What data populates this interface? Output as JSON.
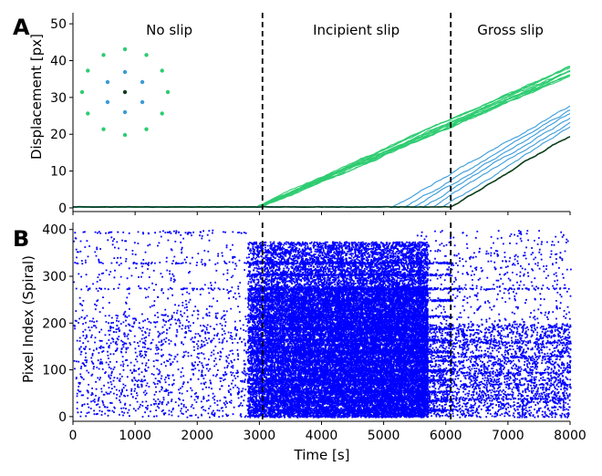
{
  "panel_labels": [
    "A",
    "B"
  ],
  "chart_data": [
    {
      "type": "line",
      "panel": "A",
      "ylabel": "Displacement [px]",
      "xlabel": "",
      "xlim": [
        0,
        8000
      ],
      "ylim": [
        -1,
        53
      ],
      "yticks": [
        0,
        10,
        20,
        30,
        40,
        50
      ],
      "x_tick_labels_visible": false,
      "regions": [
        "No slip",
        "Incipient slip",
        "Gross slip"
      ],
      "event_lines_x": [
        3050,
        6080
      ],
      "colors": {
        "outer": "#2ecc71",
        "middle": "#3a9bd9",
        "center": "#0b3d1a"
      },
      "series": [
        {
          "group": "outer",
          "count": 12,
          "start_x": 2950,
          "y_at_8000": [
            38.5,
            38.2,
            37.8,
            37.5,
            37.2,
            37.0,
            36.8,
            36.5,
            36.2,
            35.9,
            35.6,
            35.3
          ]
        },
        {
          "group": "middle",
          "count": 6,
          "start_x": [
            5150,
            5350,
            5500,
            5650,
            5800,
            5950
          ],
          "y_at_8000": [
            27.5,
            26.5,
            25.5,
            24.2,
            23.0,
            21.8
          ]
        },
        {
          "group": "center",
          "count": 1,
          "start_x": 6080,
          "y_at_8000": [
            19.2
          ]
        }
      ],
      "inset": {
        "type": "scatter",
        "rings": [
          {
            "color": "#2ecc71",
            "count": 12
          },
          {
            "color": "#3a9bd9",
            "count": 6
          },
          {
            "color": "#0b3d1a",
            "count": 1
          }
        ]
      }
    },
    {
      "type": "scatter",
      "panel": "B",
      "xlabel": "Time [s]",
      "ylabel": "Pixel Index (Spiral)",
      "xlim": [
        0,
        8000
      ],
      "ylim": [
        -10,
        415
      ],
      "xticks": [
        0,
        1000,
        2000,
        3000,
        4000,
        5000,
        6000,
        7000,
        8000
      ],
      "yticks": [
        0,
        100,
        200,
        300,
        400
      ],
      "event_lines_x": [
        3050,
        6080
      ],
      "color": "#0000ff",
      "density": [
        {
          "x_range": [
            0,
            2800
          ],
          "events_per_pixel": "sparse"
        },
        {
          "x_range": [
            2800,
            5500
          ],
          "events_per_pixel": "very dense below 280"
        },
        {
          "x_range": [
            5500,
            8000
          ],
          "events_per_pixel": "medium"
        }
      ]
    }
  ]
}
